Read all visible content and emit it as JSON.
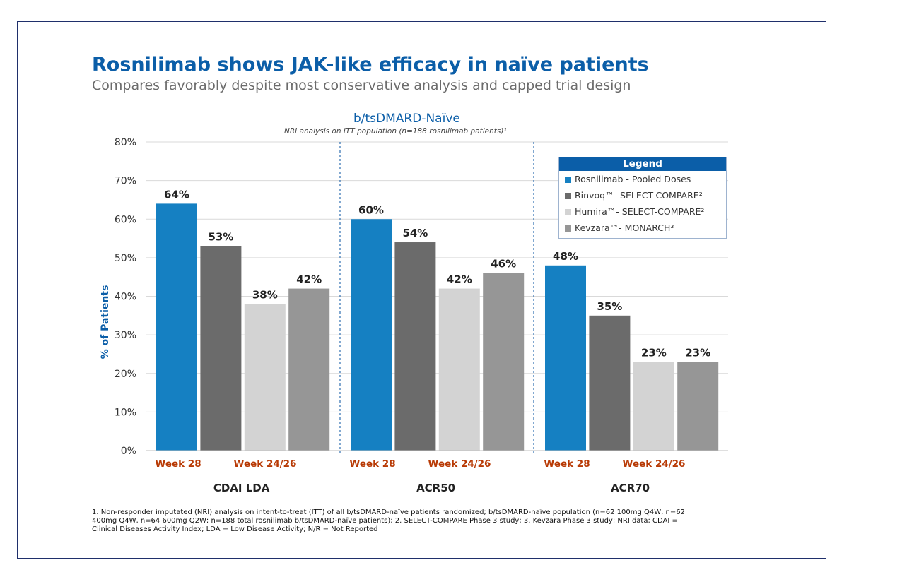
{
  "header": {
    "title": "Rosnilimab shows JAK-like efficacy in naïve patients",
    "subtitle": "Compares favorably despite most conservative analysis and capped trial design"
  },
  "chart_heading": "b/tsDMARD-Naïve",
  "chart_note": "NRI analysis on ITT population (n=188 rosnilimab patients)¹",
  "legend": {
    "title": "Legend",
    "items": [
      {
        "label": "Rosnilimab - Pooled Doses",
        "color": "#1580c2"
      },
      {
        "label": "Rinvoq™- SELECT-COMPARE²",
        "color": "#6b6b6b"
      },
      {
        "label": "Humira™- SELECT-COMPARE²",
        "color": "#d3d3d3"
      },
      {
        "label": "Kevzara™- MONARCH³",
        "color": "#969696"
      }
    ]
  },
  "footnote": "1. Non-responder imputated (NRI) analysis on intent-to-treat (ITT) of all b/tsDMARD-naïve patients randomized; b/tsDMARD-naïve population (n=62 100mg Q4W, n=62 400mg Q4W, n=64 600mg Q2W; n=188 total rosnilimab b/tsDMARD-naïve patients); 2. SELECT-COMPARE Phase 3 study; 3. Kevzara Phase 3 study; NRI data; CDAI = Clinical Diseases Activity Index; LDA = Low Disease Activity; N/R = Not Reported",
  "chart_data": {
    "type": "bar",
    "ylabel": "% of Patients",
    "ylim": [
      0,
      80
    ],
    "yticks": [
      "0%",
      "10%",
      "20%",
      "30%",
      "40%",
      "50%",
      "60%",
      "70%",
      "80%"
    ],
    "grid": true,
    "legend_position": "top-right",
    "groups": [
      {
        "name": "CDAI LDA",
        "week_labels": [
          "Week 28",
          "Week 24/26"
        ],
        "values": [
          64,
          53,
          38,
          42
        ],
        "labels": [
          "64%",
          "53%",
          "38%",
          "42%"
        ]
      },
      {
        "name": "ACR50",
        "week_labels": [
          "Week 28",
          "Week 24/26"
        ],
        "values": [
          60,
          54,
          42,
          46
        ],
        "labels": [
          "60%",
          "54%",
          "42%",
          "46%"
        ]
      },
      {
        "name": "ACR70",
        "week_labels": [
          "Week 28",
          "Week 24/26"
        ],
        "values": [
          48,
          35,
          23,
          23
        ],
        "labels": [
          "48%",
          "35%",
          "23%",
          "23%"
        ]
      }
    ],
    "series": [
      {
        "name": "Rosnilimab - Pooled Doses",
        "color": "#1580c2"
      },
      {
        "name": "Rinvoq™- SELECT-COMPARE²",
        "color": "#6b6b6b"
      },
      {
        "name": "Humira™- SELECT-COMPARE²",
        "color": "#d3d3d3"
      },
      {
        "name": "Kevzara™- MONARCH³",
        "color": "#969696"
      }
    ],
    "colors": {
      "week_label": "#b83a05",
      "axis_label": "#0b5ea8",
      "divider": "#2e6fb0"
    }
  }
}
